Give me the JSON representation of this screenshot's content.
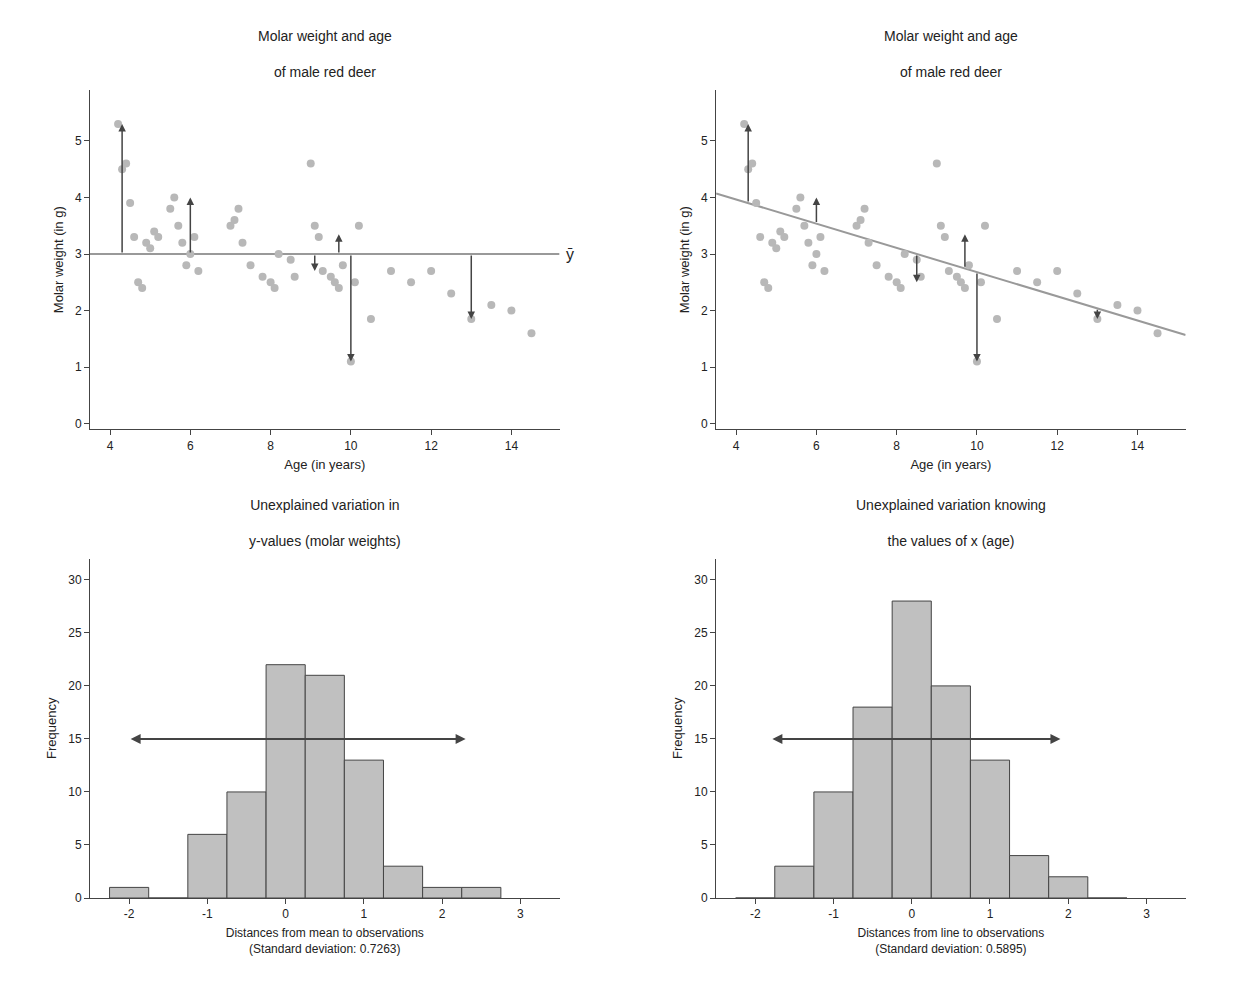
{
  "chart_data": [
    {
      "type": "scatter",
      "title": "Molar weight and age\n\nof male red deer",
      "xlabel": "Age (in years)",
      "ylabel": "Molar weight (in g)",
      "series": [
        {
          "type": "scatter",
          "color": "#b8b8b8",
          "x": [
            4.2,
            4.3,
            4.4,
            4.5,
            4.6,
            4.7,
            4.8,
            4.9,
            5.0,
            5.1,
            5.2,
            5.5,
            5.6,
            5.7,
            5.8,
            5.9,
            6.0,
            6.1,
            6.2,
            7.0,
            7.1,
            7.2,
            7.3,
            7.5,
            7.8,
            8.0,
            8.1,
            8.2,
            8.5,
            8.6,
            9.0,
            9.1,
            9.2,
            9.3,
            9.5,
            9.6,
            9.7,
            9.8,
            10.0,
            10.1,
            10.2,
            10.5,
            11.0,
            11.5,
            12.0,
            12.5,
            13.0,
            13.5,
            14.0,
            14.5
          ],
          "values": [
            5.3,
            4.5,
            4.6,
            3.9,
            3.3,
            2.5,
            2.4,
            3.2,
            3.1,
            3.4,
            3.3,
            3.8,
            4.0,
            3.5,
            3.2,
            2.8,
            3.0,
            3.3,
            2.7,
            3.5,
            3.6,
            3.8,
            3.2,
            2.8,
            2.6,
            2.5,
            2.4,
            3.0,
            2.9,
            2.6,
            4.6,
            3.5,
            3.3,
            2.7,
            2.6,
            2.5,
            2.4,
            2.8,
            1.1,
            2.5,
            3.5,
            1.85,
            2.7,
            2.5,
            2.7,
            2.3,
            1.85,
            2.1,
            2.0,
            1.6
          ]
        },
        {
          "type": "line",
          "color": "#999999",
          "x": [
            3.5,
            15.2
          ],
          "values": [
            3.0,
            3.0
          ]
        }
      ],
      "annotations": [
        {
          "text": "ȳ",
          "y": 3.0
        }
      ],
      "arrows": [
        {
          "x": 4.3,
          "y_from": 3.0,
          "y_to": 5.3
        },
        {
          "x": 6.0,
          "y_from": 3.0,
          "y_to": 4.0
        },
        {
          "x": 9.1,
          "y_from": 3.0,
          "y_to": 2.7
        },
        {
          "x": 9.7,
          "y_from": 3.0,
          "y_to": 3.35
        },
        {
          "x": 10.0,
          "y_from": 3.0,
          "y_to": 1.1
        },
        {
          "x": 13.0,
          "y_from": 3.0,
          "y_to": 1.85
        }
      ],
      "xlim": [
        3.5,
        15.2
      ],
      "ylim": [
        -0.1,
        5.9
      ],
      "xticks": [
        4,
        6,
        8,
        10,
        12,
        14
      ],
      "yticks": [
        0,
        1,
        2,
        3,
        4,
        5
      ],
      "grid": false
    },
    {
      "type": "scatter",
      "title": "Molar weight and age\n\nof male red deer",
      "xlabel": "Age (in years)",
      "ylabel": "Molar weight (in g)",
      "series": [
        {
          "type": "scatter",
          "color": "#b8b8b8",
          "x": [
            4.2,
            4.3,
            4.4,
            4.5,
            4.6,
            4.7,
            4.8,
            4.9,
            5.0,
            5.1,
            5.2,
            5.5,
            5.6,
            5.7,
            5.8,
            5.9,
            6.0,
            6.1,
            6.2,
            7.0,
            7.1,
            7.2,
            7.3,
            7.5,
            7.8,
            8.0,
            8.1,
            8.2,
            8.5,
            8.6,
            9.0,
            9.1,
            9.2,
            9.3,
            9.5,
            9.6,
            9.7,
            9.8,
            10.0,
            10.1,
            10.2,
            10.5,
            11.0,
            11.5,
            12.0,
            12.5,
            13.0,
            13.5,
            14.0,
            14.5
          ],
          "values": [
            5.3,
            4.5,
            4.6,
            3.9,
            3.3,
            2.5,
            2.4,
            3.2,
            3.1,
            3.4,
            3.3,
            3.8,
            4.0,
            3.5,
            3.2,
            2.8,
            3.0,
            3.3,
            2.7,
            3.5,
            3.6,
            3.8,
            3.2,
            2.8,
            2.6,
            2.5,
            2.4,
            3.0,
            2.9,
            2.6,
            4.6,
            3.5,
            3.3,
            2.7,
            2.6,
            2.5,
            2.4,
            2.8,
            1.1,
            2.5,
            3.5,
            1.85,
            2.7,
            2.5,
            2.7,
            2.3,
            1.85,
            2.1,
            2.0,
            1.6
          ]
        },
        {
          "type": "line",
          "color": "#999999",
          "x": [
            3.5,
            15.2
          ],
          "values": [
            4.071,
            1.5672
          ]
        }
      ],
      "arrows": [
        {
          "x": 4.3,
          "y_from": 3.9,
          "y_to": 5.3
        },
        {
          "x": 6.0,
          "y_from": 3.54,
          "y_to": 4.0
        },
        {
          "x": 8.5,
          "y_from": 3.0,
          "y_to": 2.5
        },
        {
          "x": 9.7,
          "y_from": 2.75,
          "y_to": 3.35
        },
        {
          "x": 10.0,
          "y_from": 2.68,
          "y_to": 1.1
        },
        {
          "x": 13.0,
          "y_from": 2.04,
          "y_to": 1.85
        }
      ],
      "xlim": [
        3.5,
        15.2
      ],
      "ylim": [
        -0.1,
        5.9
      ],
      "xticks": [
        4,
        6,
        8,
        10,
        12,
        14
      ],
      "yticks": [
        0,
        1,
        2,
        3,
        4,
        5
      ],
      "grid": false
    },
    {
      "type": "histogram",
      "title": "Unexplained variation in\n\ny-values (molar weights)",
      "xlabel": "Distances from mean to observations\n(Standard deviation: 0.7263)",
      "ylabel": "Frequency",
      "bins": [
        -2.25,
        -1.75,
        -1.25,
        -0.75,
        -0.25,
        0.25,
        0.75,
        1.25,
        1.75,
        2.25,
        2.75
      ],
      "values": [
        1,
        0,
        6,
        10,
        22,
        21,
        13,
        3,
        1,
        1
      ],
      "color": "#c0c0c0",
      "span": {
        "x_from": -2.0,
        "x_to": 2.3,
        "y": 15
      },
      "xlim": [
        -2.5,
        3.5
      ],
      "ylim": [
        0,
        32
      ],
      "xticks": [
        -2,
        -1,
        0,
        1,
        2,
        3
      ],
      "yticks": [
        0,
        5,
        10,
        15,
        20,
        25,
        30
      ],
      "grid": false
    },
    {
      "type": "histogram",
      "title": "Unexplained variation knowing\n\nthe values of x (age)",
      "xlabel": "Distances from line to observations\n(Standard deviation: 0.5895)",
      "ylabel": "Frequency",
      "bins": [
        -2.25,
        -1.75,
        -1.25,
        -0.75,
        -0.25,
        0.25,
        0.75,
        1.25,
        1.75,
        2.25,
        2.75
      ],
      "values": [
        0,
        3,
        10,
        18,
        28,
        20,
        13,
        4,
        2,
        0
      ],
      "color": "#c0c0c0",
      "span": {
        "x_from": -1.8,
        "x_to": 1.9,
        "y": 15
      },
      "xlim": [
        -2.5,
        3.5
      ],
      "ylim": [
        0,
        32
      ],
      "xticks": [
        -2,
        -1,
        0,
        1,
        2,
        3
      ],
      "yticks": [
        0,
        5,
        10,
        15,
        20,
        25,
        30
      ],
      "grid": false
    }
  ]
}
